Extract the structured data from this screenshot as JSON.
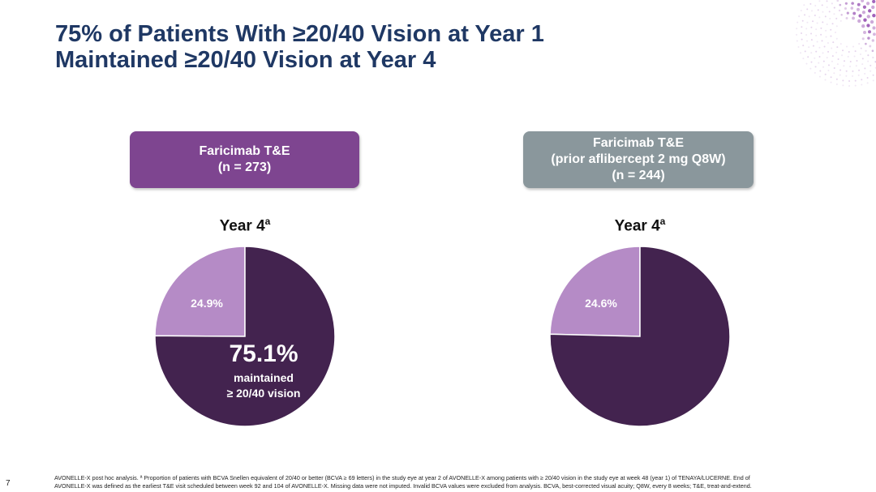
{
  "title": {
    "line1": "75% of Patients With ≥20/40 Vision at Year 1",
    "line2": "Maintained ≥20/40 Vision at Year 4"
  },
  "colors": {
    "title": "#1f3864",
    "dark_slice": "#43234f",
    "light_slice": "#b58bc6",
    "box_left": "#7e4590",
    "box_right": "#8a979c"
  },
  "groups": [
    {
      "line1": "Faricimab T&E",
      "line2": "(n = 273)",
      "line3": ""
    },
    {
      "line1": "Faricimab T&E",
      "line2": "(prior aflibercept 2 mg Q8W)",
      "line3": "(n = 244)"
    }
  ],
  "chart_data": [
    {
      "type": "pie",
      "title": "Year 4",
      "title_superscript": "a",
      "slices": [
        {
          "label": "24.9%",
          "value": 24.9,
          "color": "#b58bc6"
        },
        {
          "label": "75.1%",
          "value": 75.1,
          "color": "#43234f",
          "annotation_line1": "maintained",
          "annotation_line2": "≥ 20/40 vision"
        }
      ]
    },
    {
      "type": "pie",
      "title": "Year 4",
      "title_superscript": "a",
      "slices": [
        {
          "label": "24.6%",
          "value": 24.6,
          "color": "#b58bc6"
        },
        {
          "value": 75.4,
          "color": "#43234f"
        }
      ]
    }
  ],
  "footnote": {
    "line1": "AVONELLE-X post hoc analysis. ª Proportion of patients with BCVA Snellen equivalent of 20/40 or better (BCVA ≥ 69 letters) in the study eye at year 2 of AVONELLE-X among patients with ≥ 20/40 vision in the study eye at week 48 (year 1) of TENAYA/LUCERNE. End of",
    "line2": "AVONELLE-X was defined as the earliest T&E visit scheduled between week 92 and 104 of AVONELLE-X. Missing data were not imputed. Invalid BCVA values were excluded from analysis. BCVA, best-corrected visual acuity; Q8W, every 8 weeks; T&E, treat-and-extend."
  },
  "page_number": "7",
  "logo_icon": "dotted-circle-logo"
}
